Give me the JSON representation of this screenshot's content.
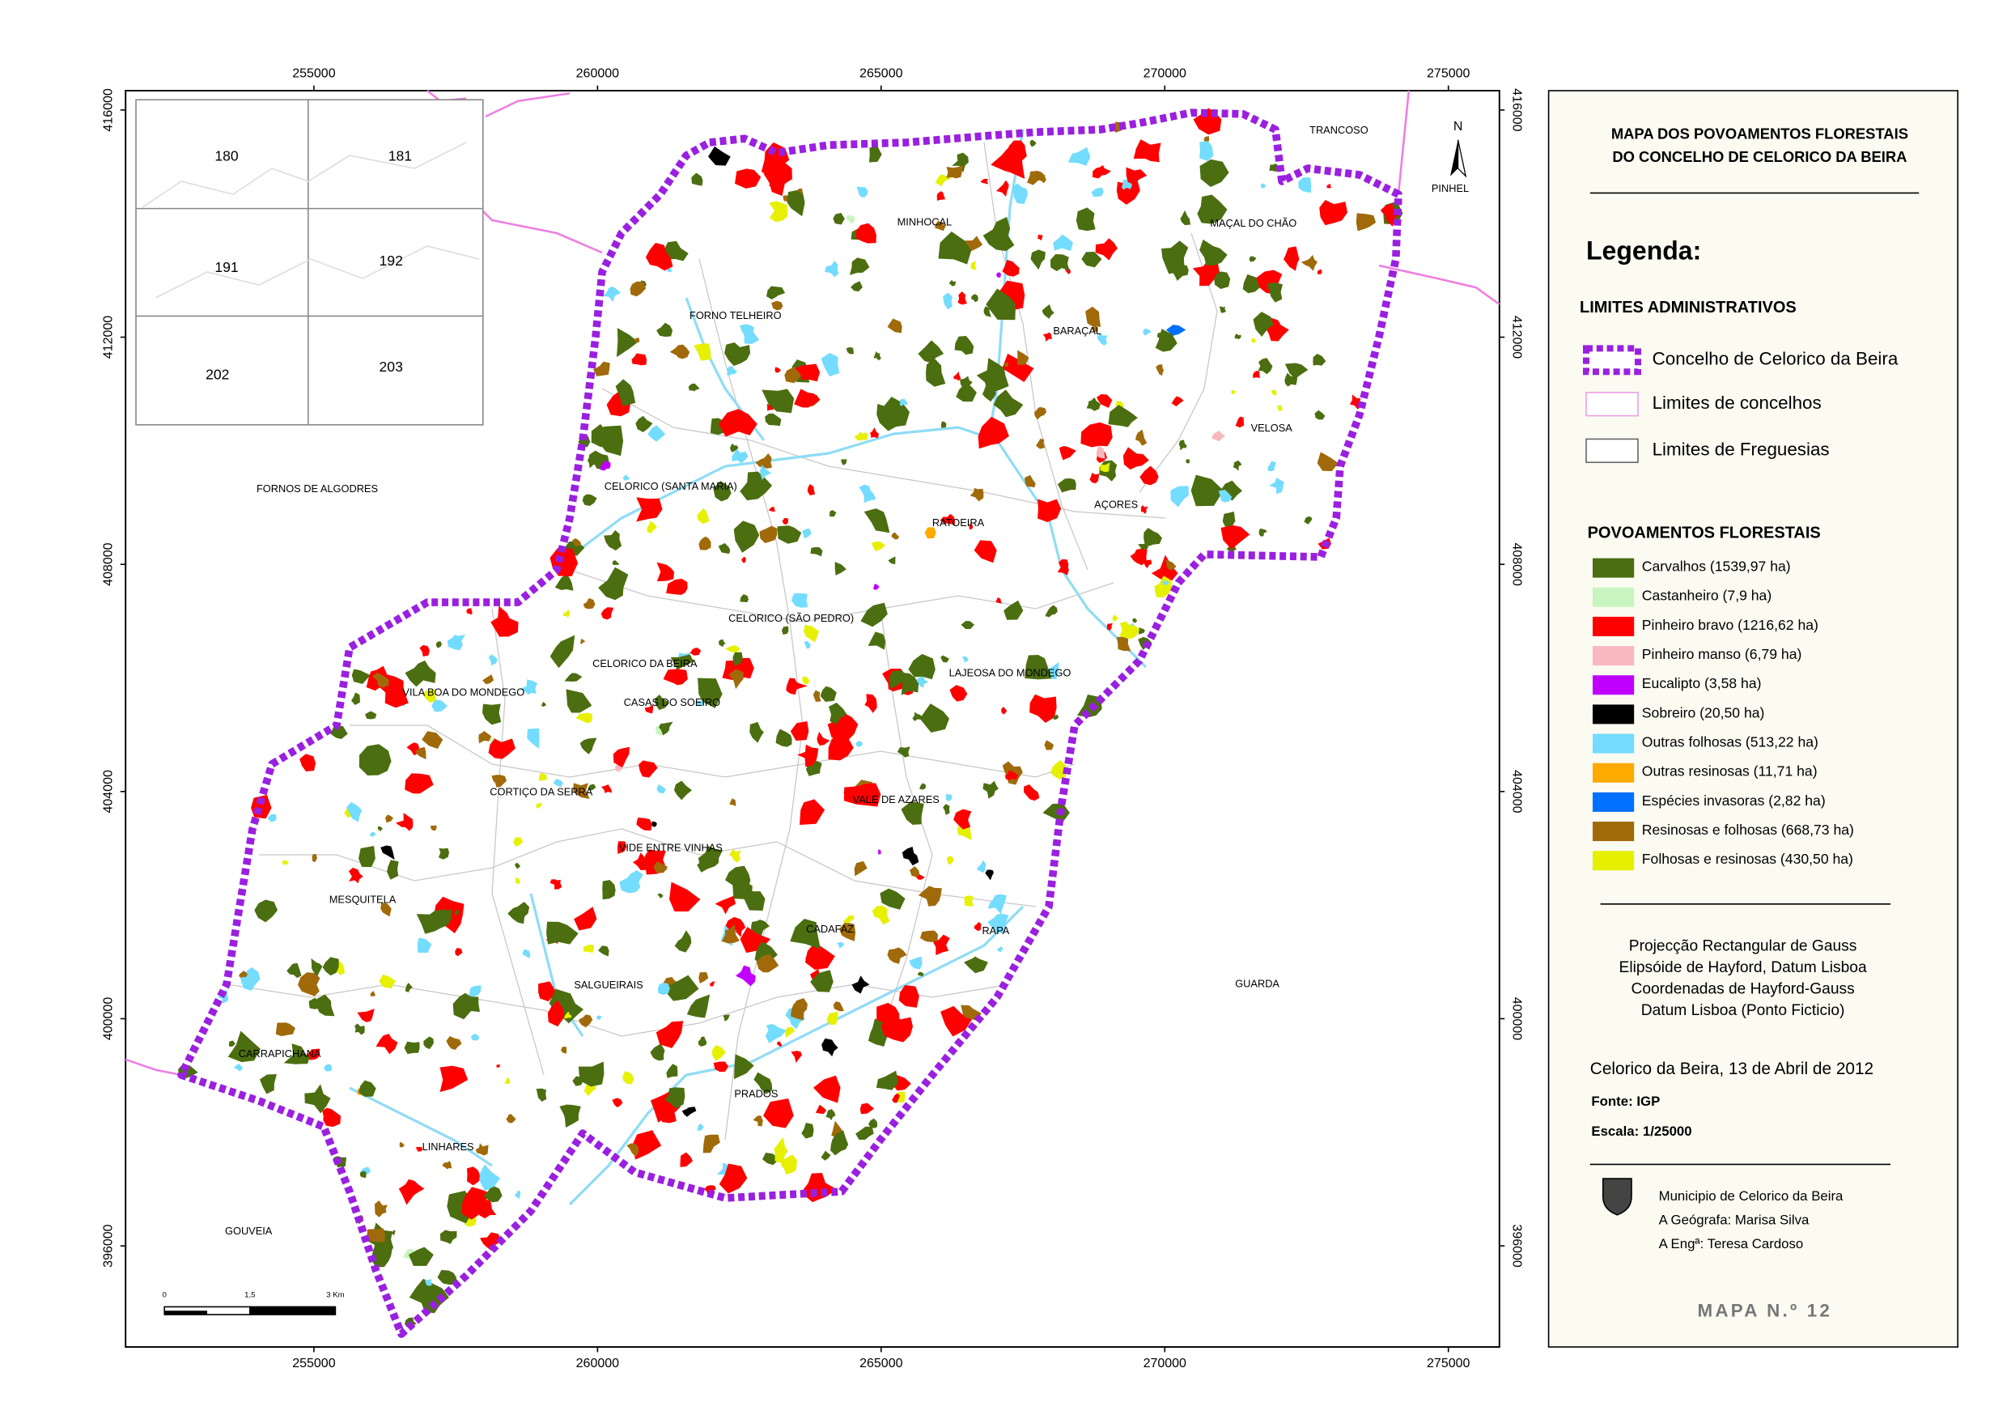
{
  "map": {
    "xlim": [
      251680,
      275900
    ],
    "ylim": [
      394220,
      416340
    ],
    "xticks": [
      255000,
      260000,
      265000,
      270000,
      275000
    ],
    "yticks": [
      396000,
      400000,
      404000,
      408000,
      412000,
      416000
    ],
    "north": "N",
    "places": [
      "TRANCOSO",
      "PINHEL",
      "MINHOCAL",
      "MAÇAL DO CHÃO",
      "FORNO TELHEIRO",
      "BARAÇAL",
      "VELOSA",
      "FORNOS DE ALGODRES",
      "CELORICO (SANTA MARIA)",
      "AÇORES",
      "RATOEIRA",
      "CELORICO (SÃO PEDRO)",
      "CELORICO DA BEIRA",
      "LAJEOSA DO MONDEGO",
      "VILA BOA DO MONDEGO",
      "CASAS DO SOEIRO",
      "CORTIÇO DA SERRA",
      "VALE DE AZARES",
      "VIDE ENTRE VINHAS",
      "MESQUITELA",
      "CADAFAZ",
      "RAPA",
      "SALGUEIRAIS",
      "GUARDA",
      "CARRAPICHANA",
      "PRADOS",
      "LINHARES",
      "GOUVEIA"
    ],
    "inset_labels": [
      "180",
      "181",
      "191",
      "192",
      "202",
      "203"
    ],
    "scale_labels": [
      "0",
      "1,5",
      "3 Km"
    ]
  },
  "legend": {
    "title": [
      "MAPA DOS POVOAMENTOS FLORESTAIS",
      "DO CONCELHO DE CELORICO DA BEIRA"
    ],
    "heading": "Legenda:",
    "admin_title": "LIMITES ADMINISTRATIVOS",
    "admin_items": [
      "Concelho de Celorico da Beira",
      "Limites de concelhos",
      "Limites de Freguesias"
    ],
    "forest_title": "POVOAMENTOS FLORESTAIS",
    "forest_items": [
      {
        "label": "Carvalhos (1539,97 ha)",
        "color": "#4b6e10"
      },
      {
        "label": "Castanheiro (7,9 ha)",
        "color": "#c8f5bf"
      },
      {
        "label": "Pinheiro bravo (1216,62 ha)",
        "color": "#ff0000"
      },
      {
        "label": "Pinheiro manso (6,79 ha)",
        "color": "#f8b8bf"
      },
      {
        "label": "Eucalipto (3,58 ha)",
        "color": "#c000ff"
      },
      {
        "label": "Sobreiro (20,50 ha)",
        "color": "#000000"
      },
      {
        "label": "Outras folhosas (513,22 ha)",
        "color": "#73dcff"
      },
      {
        "label": "Outras resinosas (11,71 ha)",
        "color": "#ffaa00"
      },
      {
        "label": "Espécies invasoras (2,82 ha)",
        "color": "#0070ff"
      },
      {
        "label": "Resinosas e folhosas (668,73 ha)",
        "color": "#a06a0a"
      },
      {
        "label": "Folhosas e resinosas (430,50 ha)",
        "color": "#e6f000"
      }
    ],
    "projection": [
      "Projecção Rectangular de Gauss",
      "Elipsóide de Hayford, Datum Lisboa",
      "Coordenadas de Hayford-Gauss",
      "Datum Lisboa (Ponto Ficticio)"
    ],
    "date": "Celorico da Beira, 13 de Abril de 2012",
    "source": "Fonte: IGP",
    "scale": "Escala: 1/25000",
    "credits": [
      "Municipio de Celorico da Beira",
      "A Geógrafa: Marisa Silva",
      "A Engª: Teresa Cardoso"
    ],
    "map_number": "MAPA N.º 12"
  }
}
